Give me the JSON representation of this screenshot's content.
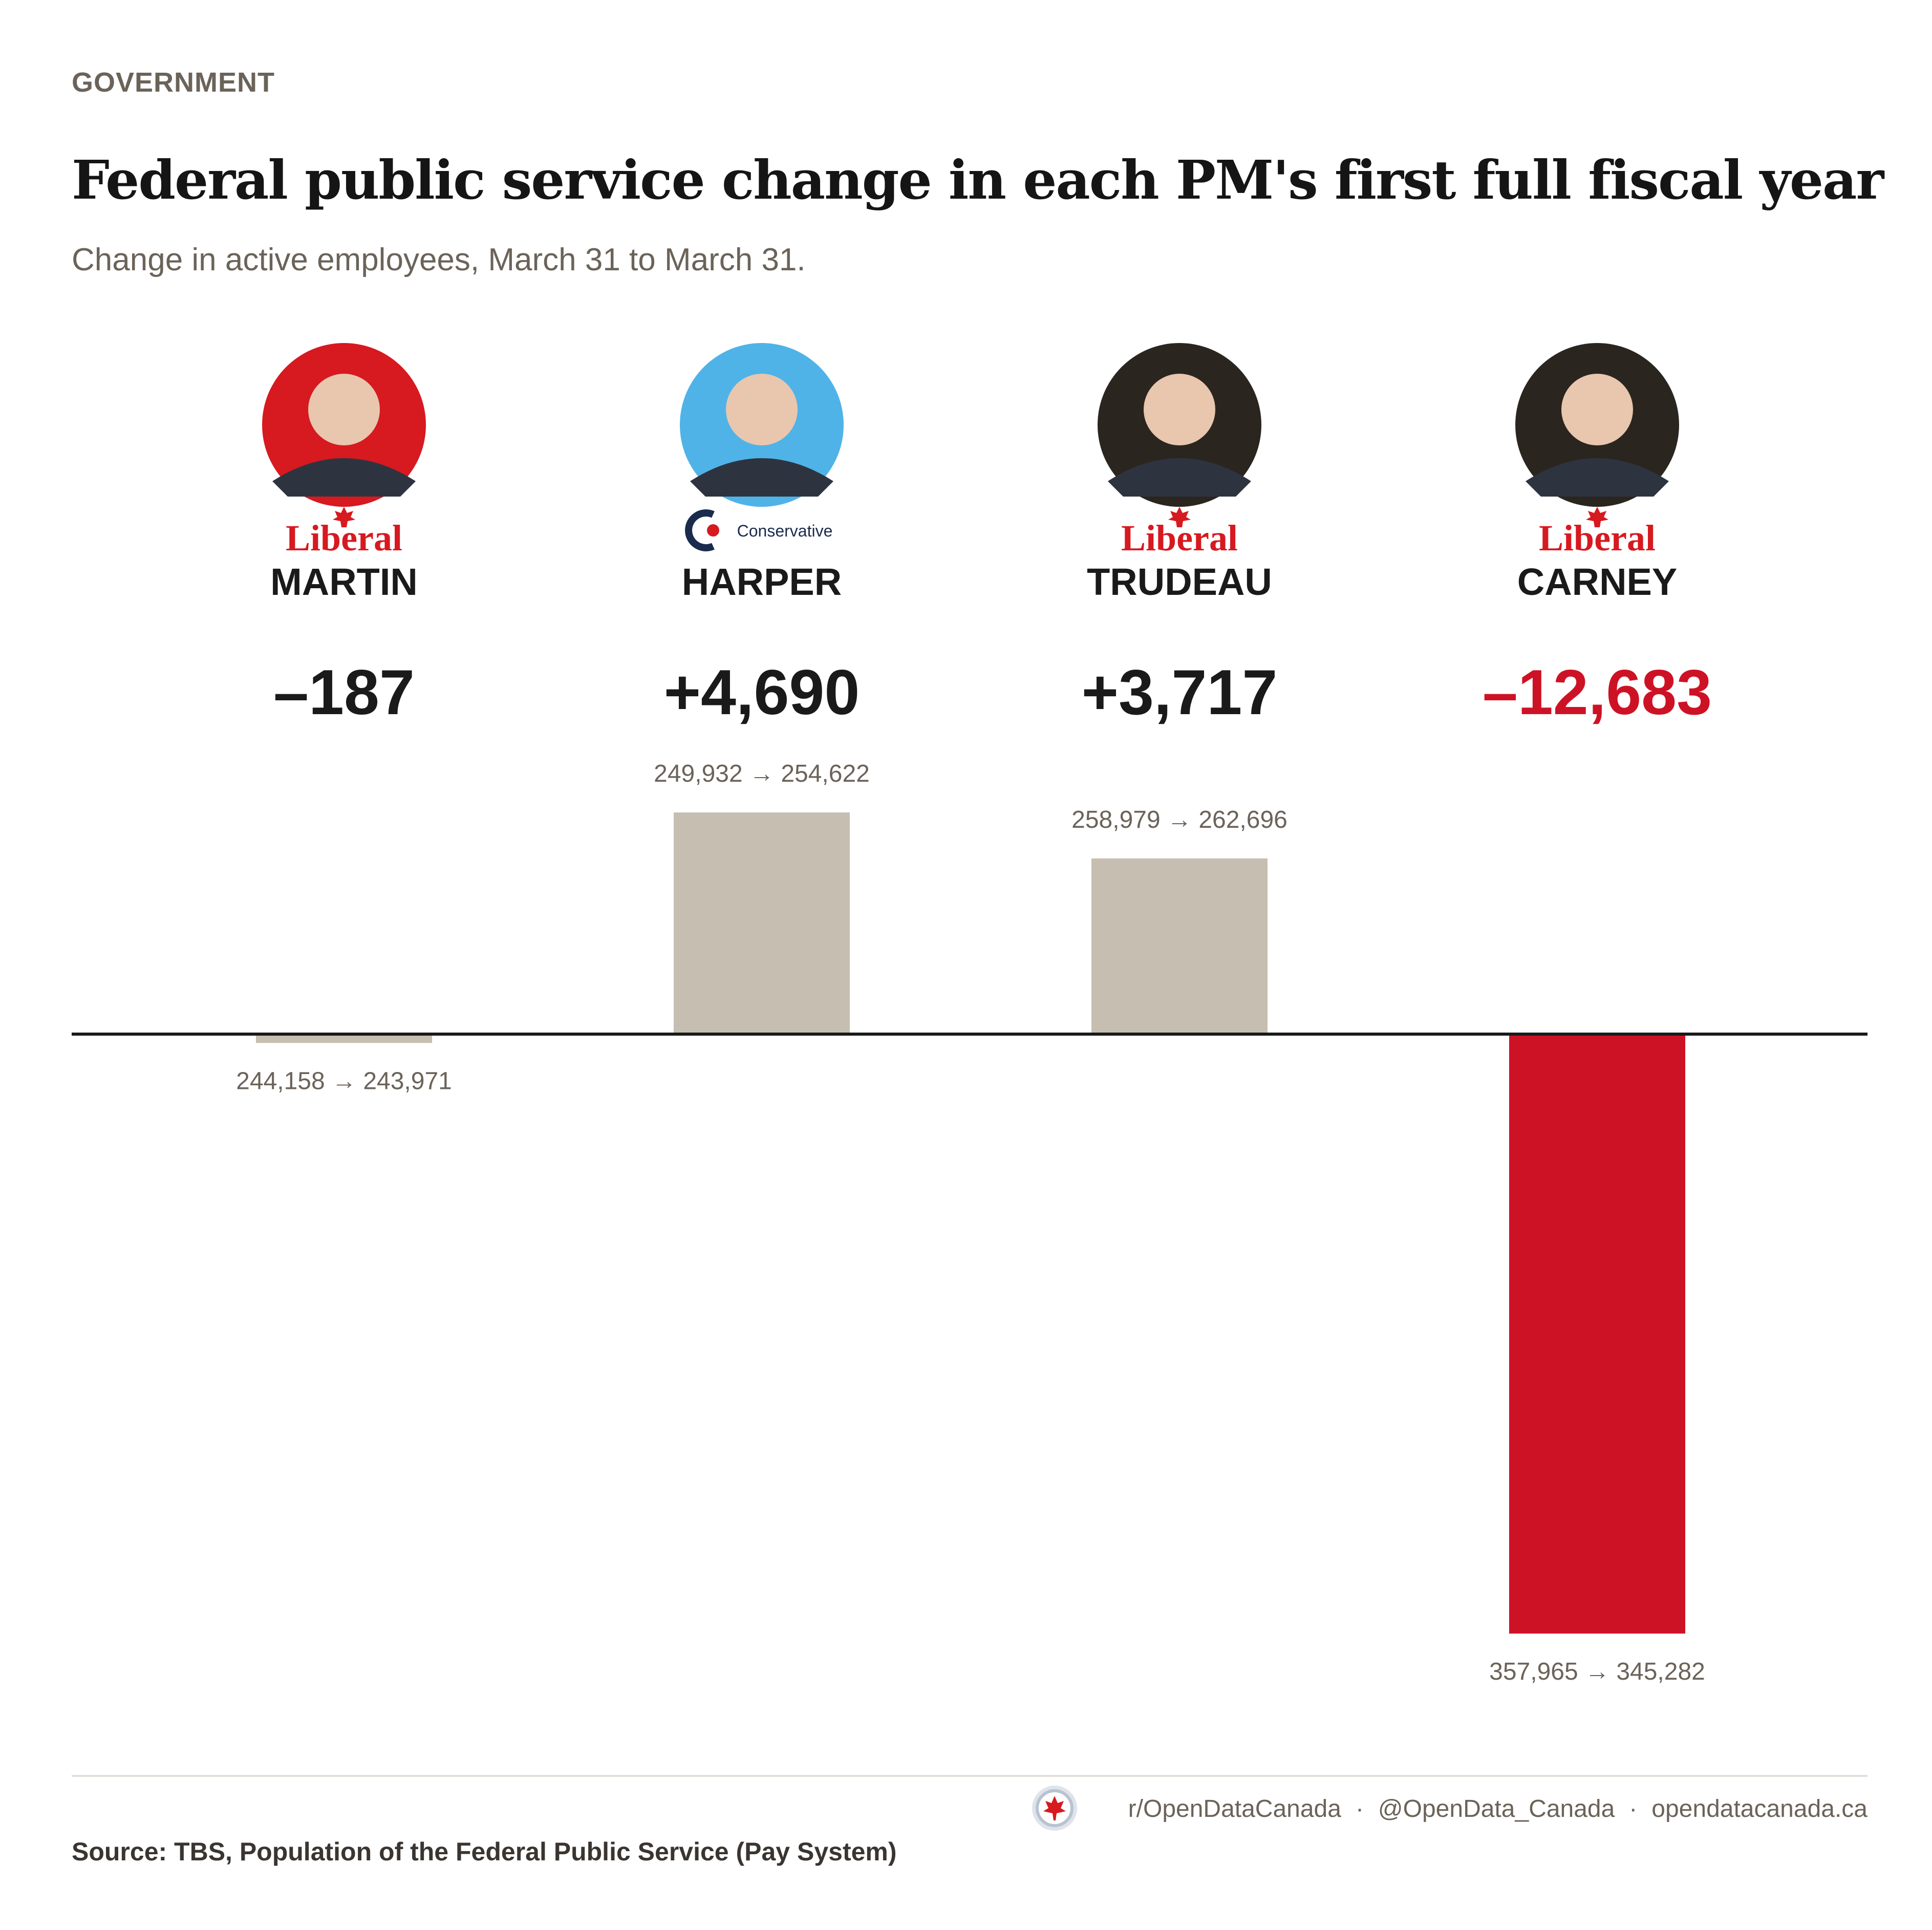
{
  "kicker": "GOVERNMENT",
  "title": "Federal public service change in each PM's first full fiscal year",
  "subtitle": "Change in active employees, March 31 to March 31.",
  "chart_data": {
    "type": "bar",
    "categories": [
      "MARTIN",
      "HARPER",
      "TRUDEAU",
      "CARNEY"
    ],
    "values": [
      -187,
      4690,
      3717,
      -12683
    ],
    "value_labels": [
      "–187",
      "+4,690",
      "+3,717",
      "–12,683"
    ],
    "range_labels": [
      "244,158 → 243,971",
      "249,932 → 254,622",
      "258,979 → 262,696",
      "357,965 → 345,282"
    ],
    "parties": [
      "Liberal",
      "Conservative",
      "Liberal",
      "Liberal"
    ],
    "ylim": [
      -12683,
      4690
    ],
    "grid": false,
    "colors": {
      "neutral": "#c5beb1",
      "highlight": "#ce1226",
      "axis": "#1a1a1a",
      "highlight_text": "#ce1226",
      "text": "#1a1a1a",
      "muted": "#6b6359",
      "liberal": "#d71920",
      "conservative": "#1a2b4c"
    }
  },
  "footer": {
    "source": "Source: TBS, Population of the Federal Public Service (Pay System)",
    "credit_1": "r/OpenDataCanada",
    "credit_2": "@OpenData_Canada",
    "credit_3": "opendatacanada.ca",
    "separator": "·"
  }
}
